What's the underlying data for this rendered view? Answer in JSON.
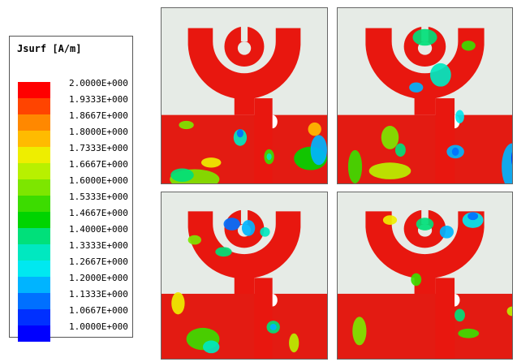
{
  "legend": {
    "title": "Jsurf [A/m]",
    "levels": [
      {
        "label": "2.0000E+000",
        "color": "#ff0000"
      },
      {
        "label": "1.9333E+000",
        "color": "#ff4400"
      },
      {
        "label": "1.8667E+000",
        "color": "#ff8800"
      },
      {
        "label": "1.8000E+000",
        "color": "#ffbb00"
      },
      {
        "label": "1.7333E+000",
        "color": "#eeee00"
      },
      {
        "label": "1.6667E+000",
        "color": "#b8f000"
      },
      {
        "label": "1.6000E+000",
        "color": "#7de600"
      },
      {
        "label": "1.5333E+000",
        "color": "#3cdc00"
      },
      {
        "label": "1.4667E+000",
        "color": "#00d400"
      },
      {
        "label": "1.4000E+000",
        "color": "#00e07a"
      },
      {
        "label": "1.3333E+000",
        "color": "#00e8c0"
      },
      {
        "label": "1.2667E+000",
        "color": "#00e8f0"
      },
      {
        "label": "1.2000E+000",
        "color": "#00b4ff"
      },
      {
        "label": "1.1333E+000",
        "color": "#0070ff"
      },
      {
        "label": "1.0667E+000",
        "color": "#0030ff"
      },
      {
        "label": "1.0000E+000",
        "color": "#0000ff"
      }
    ]
  },
  "panels": [
    {
      "id": "top-left"
    },
    {
      "id": "top-right"
    },
    {
      "id": "bottom-left"
    },
    {
      "id": "bottom-right"
    }
  ],
  "colors": {
    "substrate": "#e6ebe6",
    "conductor": "#e8170f",
    "ground": "#e31b12"
  }
}
